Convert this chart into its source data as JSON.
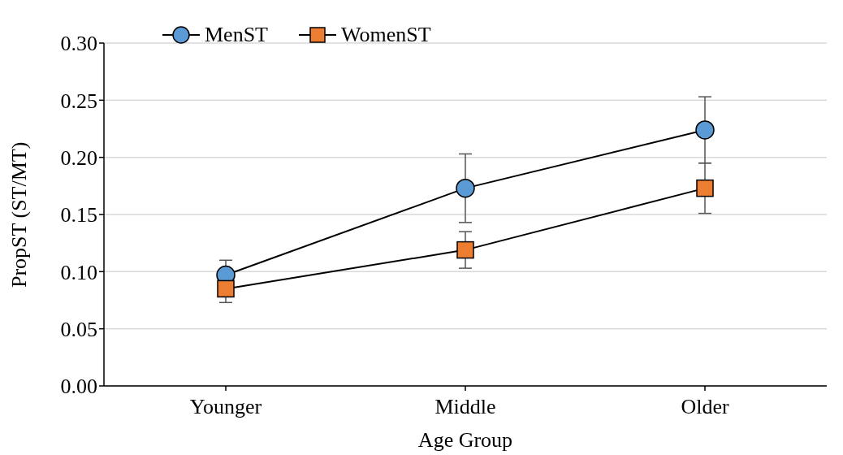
{
  "chart_data": {
    "type": "line",
    "xlabel": "Age Group",
    "ylabel": "PropST (ST/MT)",
    "categories": [
      "Younger",
      "Middle",
      "Older"
    ],
    "series": [
      {
        "name": "MenST",
        "color": "#5b9bd5",
        "marker": "circle",
        "values": [
          0.097,
          0.173,
          0.224
        ],
        "errors": [
          0.013,
          0.03,
          0.029
        ]
      },
      {
        "name": "WomenST",
        "color": "#ed7d31",
        "marker": "square",
        "values": [
          0.085,
          0.119,
          0.173
        ],
        "errors": [
          0.012,
          0.016,
          0.022
        ]
      }
    ],
    "ylim": [
      0,
      0.3
    ],
    "yticks": [
      {
        "value": 0,
        "label": "0.00"
      },
      {
        "value": 0.05,
        "label": "0.05"
      },
      {
        "value": 0.1,
        "label": "0.10"
      },
      {
        "value": 0.15,
        "label": "0.15"
      },
      {
        "value": 0.2,
        "label": "0.20"
      },
      {
        "value": 0.25,
        "label": "0.25"
      },
      {
        "value": 0.3,
        "label": "0.30"
      }
    ],
    "grid": "y",
    "legend": "top left",
    "line_style": "solid"
  }
}
